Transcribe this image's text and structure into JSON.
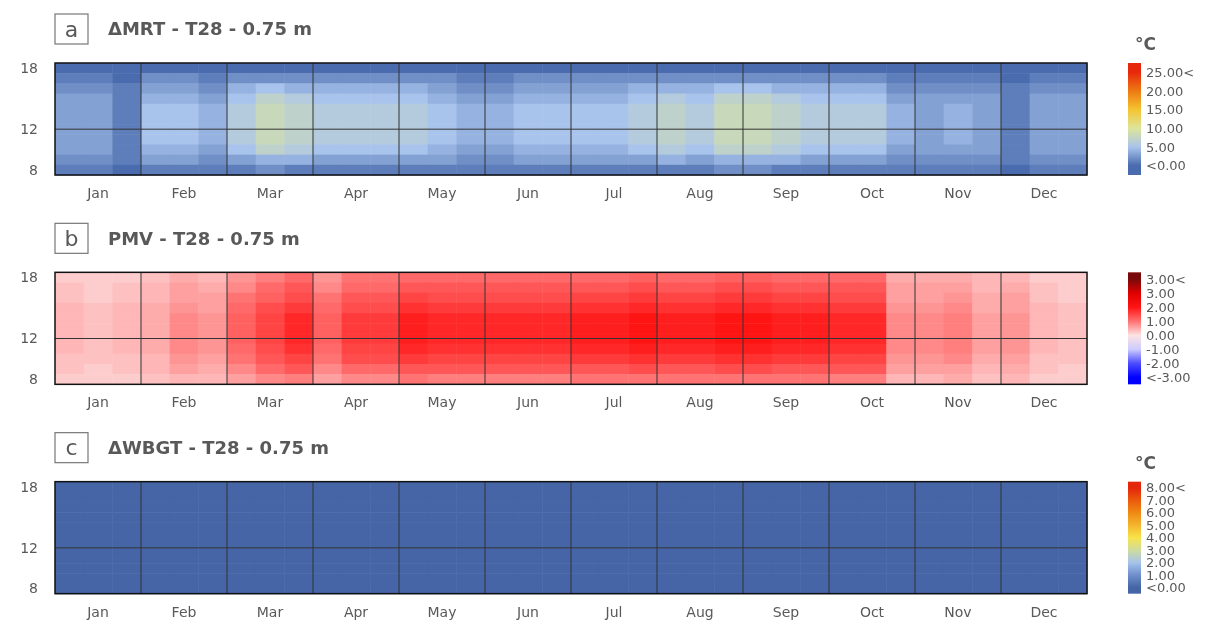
{
  "chart_data": [
    {
      "type": "heatmap",
      "title": "ΔMRT - T28 - 0.75 m",
      "annotations": [
        "a"
      ],
      "clabel": "°C",
      "grid": true,
      "categories": [
        null,
        "Jan",
        null,
        null,
        "Feb",
        null,
        null,
        "Mar",
        null,
        null,
        "Apr",
        null,
        null,
        "May",
        null,
        null,
        "Jun",
        null,
        null,
        "Jul",
        null,
        null,
        "Aug",
        null,
        null,
        "Sep",
        null,
        null,
        "Oct",
        null,
        null,
        "Nov",
        null,
        null,
        "Dec",
        null
      ],
      "y_categories": [
        "18",
        null,
        null,
        null,
        null,
        null,
        "12",
        null,
        null,
        null,
        "8"
      ],
      "cells": [
        [
          0,
          0,
          0,
          0,
          0,
          0,
          0,
          0,
          0,
          0,
          0,
          0,
          0,
          0,
          0,
          0,
          0,
          0,
          0,
          0,
          0,
          0,
          0,
          0,
          0,
          0,
          0,
          0,
          0,
          0,
          0,
          0,
          0,
          0,
          0,
          0
        ],
        [
          1,
          1,
          0,
          2,
          2,
          1,
          2,
          2,
          2,
          2,
          2,
          2,
          2,
          2,
          1,
          1,
          2,
          2,
          2,
          2,
          2,
          2,
          2,
          2,
          2,
          2,
          2,
          2,
          2,
          1,
          1,
          1,
          1,
          0,
          1,
          1
        ],
        [
          2,
          2,
          1,
          3,
          3,
          2,
          4,
          5,
          4,
          4,
          4,
          4,
          4,
          3,
          2,
          2,
          3,
          3,
          3,
          3,
          4,
          4,
          4,
          5,
          5,
          4,
          4,
          4,
          4,
          2,
          2,
          2,
          2,
          1,
          2,
          2
        ],
        [
          3,
          3,
          1,
          4,
          4,
          3,
          5,
          7,
          6,
          5,
          5,
          5,
          5,
          4,
          3,
          3,
          4,
          4,
          4,
          4,
          5,
          6,
          5,
          7,
          7,
          6,
          5,
          5,
          5,
          3,
          3,
          3,
          3,
          1,
          3,
          3
        ],
        [
          3,
          3,
          1,
          5,
          5,
          4,
          6,
          8,
          7,
          6,
          6,
          6,
          6,
          5,
          4,
          4,
          5,
          5,
          5,
          5,
          6,
          7,
          6,
          8,
          8,
          7,
          6,
          6,
          6,
          4,
          3,
          4,
          3,
          1,
          3,
          3
        ],
        [
          3,
          3,
          1,
          5,
          5,
          4,
          6,
          8,
          7,
          6,
          6,
          6,
          6,
          5,
          4,
          4,
          5,
          5,
          5,
          5,
          6,
          7,
          6,
          8,
          8,
          7,
          6,
          6,
          6,
          4,
          3,
          4,
          3,
          1,
          3,
          3
        ],
        [
          3,
          3,
          1,
          5,
          5,
          4,
          6,
          8,
          7,
          6,
          6,
          6,
          6,
          5,
          4,
          4,
          5,
          5,
          5,
          5,
          6,
          7,
          6,
          8,
          8,
          7,
          6,
          6,
          6,
          4,
          3,
          4,
          3,
          1,
          3,
          3
        ],
        [
          3,
          3,
          1,
          5,
          5,
          4,
          6,
          8,
          7,
          6,
          6,
          6,
          6,
          5,
          4,
          4,
          5,
          5,
          5,
          5,
          6,
          7,
          6,
          8,
          8,
          7,
          6,
          6,
          6,
          4,
          3,
          4,
          3,
          1,
          3,
          3
        ],
        [
          3,
          3,
          1,
          4,
          4,
          3,
          5,
          7,
          6,
          5,
          5,
          5,
          5,
          4,
          3,
          3,
          4,
          4,
          4,
          4,
          5,
          6,
          5,
          7,
          7,
          6,
          5,
          5,
          5,
          3,
          3,
          3,
          3,
          1,
          3,
          3
        ],
        [
          2,
          2,
          1,
          3,
          3,
          2,
          3,
          4,
          4,
          3,
          3,
          3,
          3,
          3,
          2,
          2,
          3,
          3,
          3,
          3,
          3,
          4,
          3,
          4,
          4,
          4,
          3,
          3,
          3,
          2,
          2,
          2,
          2,
          1,
          2,
          2
        ],
        [
          1,
          1,
          0,
          1,
          1,
          1,
          1,
          2,
          1,
          1,
          1,
          1,
          1,
          1,
          1,
          1,
          1,
          1,
          1,
          1,
          1,
          1,
          1,
          2,
          2,
          1,
          1,
          1,
          1,
          1,
          1,
          1,
          1,
          0,
          1,
          1
        ]
      ],
      "clim": [
        -2.5,
        27.5
      ],
      "cticks": [
        {
          "value": 0,
          "label": "<0.00"
        },
        {
          "value": 5,
          "label": "5.00"
        },
        {
          "value": 10,
          "label": "10.00"
        },
        {
          "value": 15,
          "label": "15.00"
        },
        {
          "value": 20,
          "label": "20.00"
        },
        {
          "value": 25,
          "label": "25.00<"
        }
      ],
      "colors": [
        "#4a6cae",
        "#a9c4ec",
        "#dde59a",
        "#f5c431",
        "#ed7a12",
        "#e8280c"
      ]
    },
    {
      "type": "heatmap",
      "title": "PMV - T28 - 0.75 m",
      "annotations": [
        "b"
      ],
      "grid": true,
      "categories": [
        null,
        "Jan",
        null,
        null,
        "Feb",
        null,
        null,
        "Mar",
        null,
        null,
        "Apr",
        null,
        null,
        "May",
        null,
        null,
        "Jun",
        null,
        null,
        "Jul",
        null,
        null,
        "Aug",
        null,
        null,
        "Sep",
        null,
        null,
        "Oct",
        null,
        null,
        "Nov",
        null,
        null,
        "Dec",
        null
      ],
      "y_categories": [
        "18",
        null,
        null,
        null,
        null,
        null,
        "12",
        null,
        null,
        null,
        "8"
      ],
      "cells": [
        [
          0.2,
          0.2,
          0.2,
          0.3,
          0.5,
          0.4,
          0.7,
          0.9,
          1.1,
          0.7,
          1.0,
          1.0,
          1.1,
          1.1,
          1.1,
          1.1,
          1.1,
          1.1,
          1.1,
          1.1,
          1.2,
          1.1,
          1.1,
          1.2,
          1.2,
          1.1,
          1.1,
          1.1,
          1.1,
          0.5,
          0.5,
          0.5,
          0.4,
          0.4,
          0.2,
          0.2
        ],
        [
          0.3,
          0.2,
          0.3,
          0.4,
          0.6,
          0.5,
          0.8,
          1.1,
          1.3,
          0.8,
          1.1,
          1.1,
          1.3,
          1.3,
          1.3,
          1.3,
          1.3,
          1.3,
          1.3,
          1.3,
          1.4,
          1.3,
          1.3,
          1.4,
          1.4,
          1.3,
          1.3,
          1.3,
          1.3,
          0.6,
          0.6,
          0.6,
          0.4,
          0.5,
          0.3,
          0.2
        ],
        [
          0.3,
          0.2,
          0.3,
          0.4,
          0.6,
          0.6,
          1.0,
          1.2,
          1.4,
          1.0,
          1.3,
          1.3,
          1.5,
          1.4,
          1.4,
          1.4,
          1.4,
          1.4,
          1.5,
          1.5,
          1.6,
          1.5,
          1.5,
          1.6,
          1.6,
          1.5,
          1.5,
          1.4,
          1.4,
          0.6,
          0.6,
          0.7,
          0.5,
          0.6,
          0.3,
          0.2
        ],
        [
          0.4,
          0.3,
          0.4,
          0.5,
          0.7,
          0.6,
          1.1,
          1.4,
          1.6,
          1.1,
          1.4,
          1.4,
          1.7,
          1.6,
          1.6,
          1.6,
          1.6,
          1.6,
          1.7,
          1.7,
          1.8,
          1.7,
          1.7,
          1.8,
          1.8,
          1.7,
          1.7,
          1.6,
          1.6,
          0.7,
          0.7,
          0.8,
          0.5,
          0.6,
          0.4,
          0.3
        ],
        [
          0.4,
          0.3,
          0.4,
          0.5,
          0.8,
          0.7,
          1.2,
          1.5,
          1.8,
          1.2,
          1.6,
          1.6,
          1.9,
          1.8,
          1.8,
          1.8,
          1.8,
          1.8,
          1.9,
          1.9,
          2.0,
          1.9,
          1.9,
          2.0,
          2.0,
          1.9,
          1.9,
          1.8,
          1.8,
          0.8,
          0.8,
          0.9,
          0.6,
          0.7,
          0.4,
          0.3
        ],
        [
          0.4,
          0.3,
          0.4,
          0.5,
          0.8,
          0.7,
          1.2,
          1.5,
          1.8,
          1.2,
          1.6,
          1.6,
          1.9,
          1.8,
          1.8,
          1.8,
          1.8,
          1.8,
          1.9,
          1.9,
          2.0,
          1.9,
          1.9,
          2.0,
          2.0,
          1.9,
          1.9,
          1.8,
          1.8,
          0.8,
          0.8,
          0.9,
          0.6,
          0.7,
          0.4,
          0.3
        ],
        [
          0.4,
          0.3,
          0.4,
          0.5,
          0.8,
          0.7,
          1.2,
          1.5,
          1.8,
          1.2,
          1.6,
          1.6,
          1.9,
          1.8,
          1.8,
          1.8,
          1.8,
          1.8,
          1.9,
          1.9,
          2.0,
          1.9,
          1.9,
          2.0,
          2.0,
          1.9,
          1.9,
          1.8,
          1.8,
          0.8,
          0.8,
          0.9,
          0.6,
          0.7,
          0.4,
          0.3
        ],
        [
          0.4,
          0.3,
          0.4,
          0.5,
          0.8,
          0.7,
          1.1,
          1.4,
          1.7,
          1.1,
          1.5,
          1.5,
          1.8,
          1.7,
          1.7,
          1.7,
          1.7,
          1.7,
          1.8,
          1.8,
          1.9,
          1.8,
          1.8,
          1.9,
          1.9,
          1.8,
          1.8,
          1.7,
          1.7,
          0.8,
          0.8,
          0.9,
          0.6,
          0.7,
          0.4,
          0.3
        ],
        [
          0.3,
          0.3,
          0.3,
          0.4,
          0.7,
          0.6,
          1.0,
          1.3,
          1.5,
          1.0,
          1.4,
          1.4,
          1.6,
          1.5,
          1.5,
          1.5,
          1.5,
          1.5,
          1.6,
          1.6,
          1.7,
          1.6,
          1.6,
          1.7,
          1.7,
          1.6,
          1.6,
          1.5,
          1.5,
          0.7,
          0.7,
          0.8,
          0.5,
          0.6,
          0.3,
          0.3
        ],
        [
          0.3,
          0.2,
          0.3,
          0.4,
          0.6,
          0.5,
          0.8,
          1.1,
          1.3,
          0.8,
          1.1,
          1.1,
          1.3,
          1.3,
          1.3,
          1.3,
          1.3,
          1.3,
          1.3,
          1.3,
          1.4,
          1.3,
          1.3,
          1.4,
          1.4,
          1.3,
          1.3,
          1.3,
          1.3,
          0.6,
          0.6,
          0.6,
          0.4,
          0.5,
          0.3,
          0.2
        ],
        [
          0.2,
          0.2,
          0.2,
          0.3,
          0.4,
          0.4,
          0.6,
          0.8,
          0.9,
          0.6,
          0.8,
          0.8,
          1.0,
          0.9,
          0.9,
          0.9,
          0.9,
          0.9,
          1.0,
          1.0,
          1.0,
          1.0,
          1.0,
          1.0,
          1.0,
          1.0,
          1.0,
          0.9,
          0.9,
          0.4,
          0.4,
          0.5,
          0.3,
          0.4,
          0.2,
          0.2
        ]
      ],
      "clim": [
        -3.5,
        4.5
      ],
      "cticks": [
        {
          "value": -3,
          "label": "<-3.00"
        },
        {
          "value": -2,
          "label": "-2.00"
        },
        {
          "value": -1,
          "label": "-1.00"
        },
        {
          "value": 0,
          "label": "0.00"
        },
        {
          "value": 1,
          "label": "1.00"
        },
        {
          "value": 2,
          "label": "2.00"
        },
        {
          "value": 3,
          "label": "3.00"
        },
        {
          "value": 4,
          "label": "3.00<"
        }
      ],
      "colors": [
        "#0000ff",
        "#4d4dff",
        "#ccccff",
        "#fde3e3",
        "#ff7373",
        "#ff1414",
        "#e00000",
        "#7a0a0a"
      ]
    },
    {
      "type": "heatmap",
      "title": "ΔWBGT - T28 - 0.75 m",
      "annotations": [
        "c"
      ],
      "clabel": "°C",
      "grid": true,
      "categories": [
        null,
        "Jan",
        null,
        null,
        "Feb",
        null,
        null,
        "Mar",
        null,
        null,
        "Apr",
        null,
        null,
        "May",
        null,
        null,
        "Jun",
        null,
        null,
        "Jul",
        null,
        null,
        "Aug",
        null,
        null,
        "Sep",
        null,
        null,
        "Oct",
        null,
        null,
        "Nov",
        null,
        null,
        "Dec",
        null
      ],
      "y_categories": [
        "18",
        null,
        null,
        null,
        null,
        null,
        "12",
        null,
        null,
        null,
        "8"
      ],
      "cells": [
        [
          0,
          0,
          0,
          0,
          0,
          0,
          0,
          0,
          0,
          0,
          0,
          0,
          0,
          0,
          0,
          0,
          0,
          0,
          0,
          0,
          0,
          0,
          0,
          0,
          0,
          0,
          0,
          0,
          0,
          0,
          0,
          0,
          0,
          0,
          0,
          0
        ],
        [
          0,
          0,
          0,
          0,
          0,
          0,
          0,
          0,
          0,
          0,
          0,
          0,
          0,
          0,
          0,
          0,
          0,
          0,
          0,
          0,
          0,
          0,
          0,
          0,
          0,
          0,
          0,
          0,
          0,
          0,
          0,
          0,
          0,
          0,
          0,
          0
        ],
        [
          0,
          0,
          0,
          0,
          0,
          0,
          0,
          0,
          0,
          0,
          0,
          0,
          0,
          0,
          0,
          0,
          0,
          0,
          0,
          0,
          0,
          0,
          0,
          0,
          0,
          0,
          0,
          0,
          0,
          0,
          0,
          0,
          0,
          0,
          0,
          0
        ],
        [
          0,
          0,
          0,
          0,
          0,
          0,
          0,
          0,
          0,
          0,
          0,
          0,
          0,
          0,
          0,
          0,
          0,
          0,
          0,
          0,
          0,
          0,
          0,
          0,
          0,
          0,
          0,
          0,
          0,
          0,
          0,
          0,
          0,
          0,
          0,
          0
        ],
        [
          0,
          0,
          0,
          0,
          0,
          0,
          0,
          0,
          0,
          0,
          0,
          0,
          0,
          0,
          0,
          0,
          0,
          0,
          0,
          0,
          0,
          0,
          0,
          0,
          0,
          0,
          0,
          0,
          0,
          0,
          0,
          0,
          0,
          0,
          0,
          0
        ],
        [
          0,
          0,
          0,
          0,
          0,
          0,
          0,
          0,
          0,
          0,
          0,
          0,
          0,
          0,
          0,
          0,
          0,
          0,
          0,
          0,
          0,
          0,
          0,
          0,
          0,
          0,
          0,
          0,
          0,
          0,
          0,
          0,
          0,
          0,
          0,
          0
        ],
        [
          0,
          0,
          0,
          0,
          0,
          0,
          0,
          0,
          0,
          0,
          0,
          0,
          0,
          0,
          0,
          0,
          0,
          0,
          0,
          0,
          0,
          0,
          0,
          0,
          0,
          0,
          0,
          0,
          0,
          0,
          0,
          0,
          0,
          0,
          0,
          0
        ],
        [
          0,
          0,
          0,
          0,
          0,
          0,
          0,
          0,
          0,
          0,
          0,
          0,
          0,
          0,
          0,
          0,
          0,
          0,
          0,
          0,
          0,
          0,
          0,
          0,
          0,
          0,
          0,
          0,
          0,
          0,
          0,
          0,
          0,
          0,
          0,
          0
        ],
        [
          0,
          0,
          0,
          0,
          0,
          0,
          0,
          0,
          0,
          0,
          0,
          0,
          0,
          0,
          0,
          0,
          0,
          0,
          0,
          0,
          0,
          0,
          0,
          0,
          0,
          0,
          0,
          0,
          0,
          0,
          0,
          0,
          0,
          0,
          0,
          0
        ],
        [
          0,
          0,
          0,
          0,
          0,
          0,
          0,
          0,
          0,
          0,
          0,
          0,
          0,
          0,
          0,
          0,
          0,
          0,
          0,
          0,
          0,
          0,
          0,
          0,
          0,
          0,
          0,
          0,
          0,
          0,
          0,
          0,
          0,
          0,
          0,
          0
        ],
        [
          0,
          0,
          0,
          0,
          0,
          0,
          0,
          0,
          0,
          0,
          0,
          0,
          0,
          0,
          0,
          0,
          0,
          0,
          0,
          0,
          0,
          0,
          0,
          0,
          0,
          0,
          0,
          0,
          0,
          0,
          0,
          0,
          0,
          0,
          0,
          0
        ]
      ],
      "clim": [
        -0.5,
        8.5
      ],
      "cticks": [
        {
          "value": 0,
          "label": "<0.00"
        },
        {
          "value": 1,
          "label": "1.00"
        },
        {
          "value": 2,
          "label": "2.00"
        },
        {
          "value": 3,
          "label": "3.00"
        },
        {
          "value": 4,
          "label": "4.00"
        },
        {
          "value": 5,
          "label": "5.00"
        },
        {
          "value": 6,
          "label": "6.00"
        },
        {
          "value": 7,
          "label": "7.00"
        },
        {
          "value": 8,
          "label": "8.00<"
        }
      ],
      "colors": [
        "#4565a6",
        "#6f8fcc",
        "#a6c3ea",
        "#cfdc9e",
        "#f7e34a",
        "#f4b52e",
        "#ef8a14",
        "#ea5a0c",
        "#e4260c"
      ]
    }
  ]
}
